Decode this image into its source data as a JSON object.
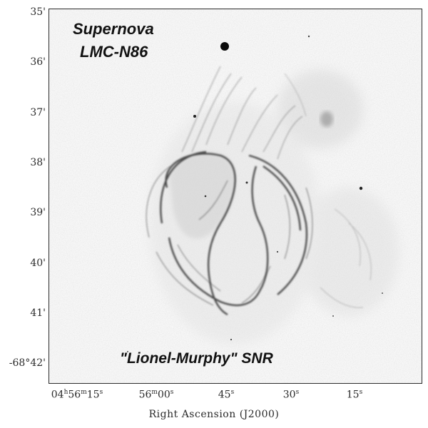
{
  "image": {
    "title_line1": "Supernova",
    "title_line2": "LMC-N86",
    "bottom_label": "\"Lionel-Murphy\" SNR"
  },
  "axes": {
    "y_ticks": [
      "35'",
      "36'",
      "37'",
      "38'",
      "39'",
      "40'",
      "41'",
      "-68°42'"
    ],
    "x_ticks": [
      {
        "main": "04",
        "h": "h",
        "m_val": "56",
        "m": "m",
        "s_val": "15",
        "s": "s"
      },
      {
        "main": "56",
        "m": "m",
        "s_val": "00",
        "s": "s"
      },
      {
        "main": "45",
        "s": "s"
      },
      {
        "main": "30",
        "s": "s"
      },
      {
        "main": "15",
        "s": "s"
      }
    ],
    "x_title": "Right Ascension (J2000)"
  },
  "colors": {
    "background": "#f7f7f7",
    "nebula": "#2e2e2e",
    "frame": "#2b2b2b"
  }
}
